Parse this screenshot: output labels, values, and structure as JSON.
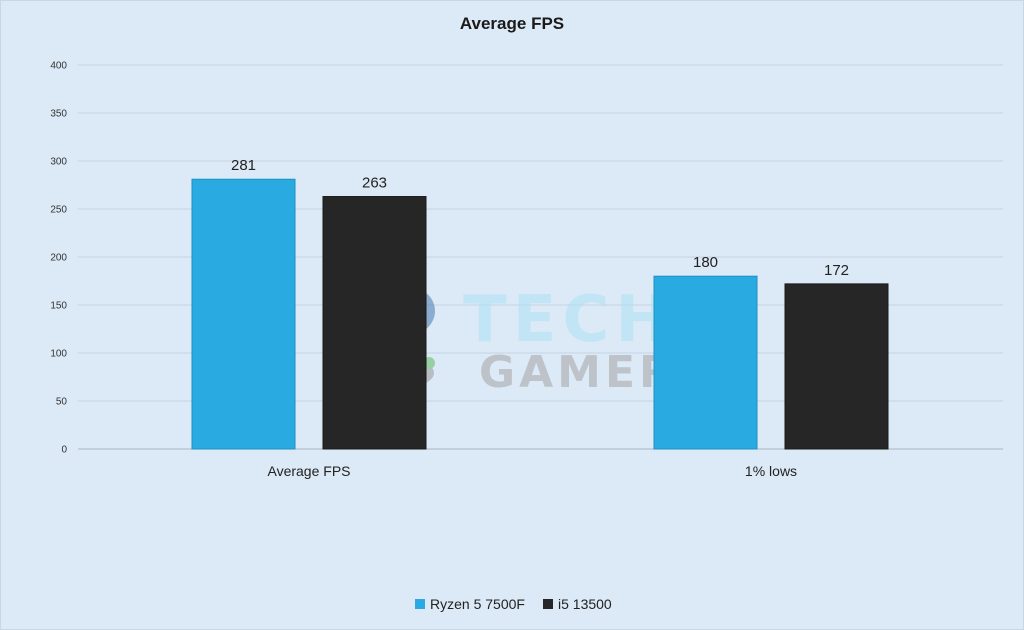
{
  "chart_data": {
    "type": "bar",
    "title": "Average FPS",
    "categories": [
      "Average FPS",
      "1% lows"
    ],
    "series": [
      {
        "name": "Ryzen 5 7500F",
        "values": [
          281,
          180
        ],
        "color": "#29abe2"
      },
      {
        "name": "i5 13500",
        "values": [
          263,
          172
        ],
        "color": "#262626"
      }
    ],
    "ylim": [
      0,
      400
    ],
    "yticks": [
      0,
      50,
      100,
      150,
      200,
      250,
      300,
      350,
      400
    ],
    "grid": true,
    "legend_position": "bottom"
  },
  "watermark": {
    "line1": "TECH",
    "line2": "GAMERS",
    "badge": "4"
  }
}
